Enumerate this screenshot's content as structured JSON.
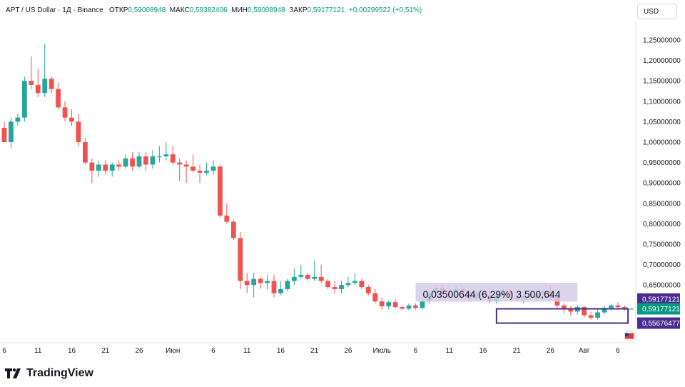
{
  "header": {
    "symbol": "APT / US Dollar · 1Д · Binance",
    "open_label": "ОТКР",
    "open_value": "0,59008948",
    "high_label": "МАКС",
    "high_value": "0,59382406",
    "low_label": "МИН",
    "low_value": "0,59008948",
    "close_label": "ЗАКР",
    "close_value": "0,59177121",
    "change": "+0,00299522 (+0,51%)"
  },
  "currency_button": "USD",
  "brand": "TradingView",
  "colors": {
    "up": "#26a69a",
    "down": "#ef5350",
    "purple": "#4a2c91",
    "green_label": "#089981",
    "measure_fill": "#d6cdea"
  },
  "measure_label": "0,03500644 (6,29%) 3 500,644",
  "price_labels": {
    "last_price": "0,59177121",
    "box_top": "0,59177121",
    "box_bottom": "0,55676477"
  },
  "chart_data": {
    "type": "candlestick",
    "ylim": [
      0.59,
      1.28
    ],
    "y_ticks": [
      "1,25000000",
      "1,20000000",
      "1,15000000",
      "1,10000000",
      "1,05000000",
      "1,00000000",
      "0,95000000",
      "0,90000000",
      "0,85000000",
      "0,80000000",
      "0,75000000",
      "0,70000000",
      "0,65000000"
    ],
    "x_ticks": [
      "6",
      "11",
      "16",
      "21",
      "26",
      "Июн",
      "6",
      "11",
      "16",
      "21",
      "26",
      "Июль",
      "6",
      "11",
      "16",
      "21",
      "26",
      "Авг",
      "6"
    ],
    "candles": [
      [
        1.035,
        1.05,
        1.0,
        1.0
      ],
      [
        1.0,
        1.06,
        0.985,
        1.05
      ],
      [
        1.05,
        1.07,
        1.04,
        1.06
      ],
      [
        1.06,
        1.16,
        1.05,
        1.15
      ],
      [
        1.15,
        1.21,
        1.13,
        1.14
      ],
      [
        1.14,
        1.18,
        1.11,
        1.12
      ],
      [
        1.12,
        1.24,
        1.11,
        1.155
      ],
      [
        1.155,
        1.16,
        1.12,
        1.13
      ],
      [
        1.13,
        1.145,
        1.08,
        1.085
      ],
      [
        1.085,
        1.1,
        1.05,
        1.06
      ],
      [
        1.06,
        1.08,
        1.04,
        1.05
      ],
      [
        1.05,
        1.07,
        0.99,
        1.0
      ],
      [
        1.0,
        1.01,
        0.945,
        0.95
      ],
      [
        0.95,
        0.96,
        0.9,
        0.93
      ],
      [
        0.93,
        0.955,
        0.915,
        0.945
      ],
      [
        0.945,
        0.955,
        0.92,
        0.93
      ],
      [
        0.93,
        0.95,
        0.915,
        0.945
      ],
      [
        0.945,
        0.955,
        0.93,
        0.94
      ],
      [
        0.94,
        0.97,
        0.935,
        0.96
      ],
      [
        0.96,
        0.975,
        0.93,
        0.94
      ],
      [
        0.94,
        0.975,
        0.935,
        0.965
      ],
      [
        0.965,
        0.975,
        0.93,
        0.945
      ],
      [
        0.945,
        0.98,
        0.935,
        0.965
      ],
      [
        0.965,
        0.99,
        0.95,
        0.965
      ],
      [
        0.965,
        1.0,
        0.955,
        0.97
      ],
      [
        0.97,
        0.99,
        0.945,
        0.95
      ],
      [
        0.95,
        0.96,
        0.905,
        0.945
      ],
      [
        0.945,
        0.955,
        0.9,
        0.94
      ],
      [
        0.94,
        0.97,
        0.925,
        0.93
      ],
      [
        0.93,
        0.945,
        0.9,
        0.925
      ],
      [
        0.925,
        0.95,
        0.92,
        0.93
      ],
      [
        0.93,
        0.955,
        0.92,
        0.94
      ],
      [
        0.94,
        0.945,
        0.815,
        0.82
      ],
      [
        0.82,
        0.85,
        0.8,
        0.805
      ],
      [
        0.805,
        0.81,
        0.76,
        0.765
      ],
      [
        0.765,
        0.78,
        0.64,
        0.66
      ],
      [
        0.66,
        0.68,
        0.63,
        0.65
      ],
      [
        0.65,
        0.68,
        0.62,
        0.665
      ],
      [
        0.665,
        0.67,
        0.64,
        0.655
      ],
      [
        0.655,
        0.675,
        0.64,
        0.66
      ],
      [
        0.66,
        0.675,
        0.62,
        0.63
      ],
      [
        0.63,
        0.66,
        0.625,
        0.64
      ],
      [
        0.64,
        0.665,
        0.635,
        0.66
      ],
      [
        0.66,
        0.69,
        0.65,
        0.67
      ],
      [
        0.67,
        0.7,
        0.665,
        0.675
      ],
      [
        0.675,
        0.68,
        0.66,
        0.665
      ],
      [
        0.665,
        0.71,
        0.66,
        0.67
      ],
      [
        0.67,
        0.7,
        0.655,
        0.66
      ],
      [
        0.66,
        0.665,
        0.64,
        0.645
      ],
      [
        0.645,
        0.66,
        0.63,
        0.64
      ],
      [
        0.64,
        0.66,
        0.63,
        0.65
      ],
      [
        0.65,
        0.67,
        0.645,
        0.655
      ],
      [
        0.655,
        0.68,
        0.65,
        0.66
      ],
      [
        0.66,
        0.665,
        0.64,
        0.645
      ],
      [
        0.645,
        0.65,
        0.625,
        0.63
      ],
      [
        0.63,
        0.64,
        0.605,
        0.61
      ],
      [
        0.61,
        0.62,
        0.59,
        0.598
      ],
      [
        0.598,
        0.612,
        0.59,
        0.608
      ],
      [
        0.608,
        0.615,
        0.593,
        0.596
      ],
      [
        0.596,
        0.6,
        0.588,
        0.592
      ],
      [
        0.592,
        0.605,
        0.588,
        0.6
      ],
      [
        0.6,
        0.605,
        0.59,
        0.594
      ],
      [
        0.594,
        0.615,
        0.59,
        0.61
      ],
      [
        0.61,
        0.635,
        0.605,
        0.63
      ],
      [
        0.63,
        0.645,
        0.625,
        0.643
      ],
      [
        0.643,
        0.65,
        0.63,
        0.637
      ],
      [
        0.637,
        0.645,
        0.625,
        0.635
      ],
      [
        0.635,
        0.65,
        0.628,
        0.64
      ],
      [
        0.64,
        0.648,
        0.628,
        0.633
      ],
      [
        0.633,
        0.64,
        0.612,
        0.618
      ],
      [
        0.618,
        0.635,
        0.612,
        0.63
      ],
      [
        0.63,
        0.64,
        0.62,
        0.625
      ],
      [
        0.625,
        0.632,
        0.605,
        0.61
      ],
      [
        0.61,
        0.628,
        0.605,
        0.625
      ],
      [
        0.625,
        0.64,
        0.62,
        0.635
      ],
      [
        0.635,
        0.64,
        0.615,
        0.62
      ],
      [
        0.62,
        0.63,
        0.61,
        0.615
      ],
      [
        0.615,
        0.628,
        0.605,
        0.622
      ],
      [
        0.622,
        0.632,
        0.615,
        0.618
      ],
      [
        0.618,
        0.635,
        0.61,
        0.63
      ],
      [
        0.63,
        0.64,
        0.625,
        0.635
      ],
      [
        0.635,
        0.65,
        0.615,
        0.62
      ],
      [
        0.62,
        0.622,
        0.595,
        0.6
      ],
      [
        0.6,
        0.605,
        0.58,
        0.59
      ],
      [
        0.59,
        0.598,
        0.575,
        0.585
      ],
      [
        0.585,
        0.6,
        0.578,
        0.596
      ],
      [
        0.596,
        0.6,
        0.57,
        0.576
      ],
      [
        0.576,
        0.585,
        0.565,
        0.57
      ],
      [
        0.57,
        0.59,
        0.565,
        0.583
      ],
      [
        0.583,
        0.6,
        0.578,
        0.594
      ],
      [
        0.594,
        0.605,
        0.588,
        0.6
      ],
      [
        0.6,
        0.608,
        0.592,
        0.596
      ],
      [
        0.596,
        0.6,
        0.588,
        0.59
      ],
      [
        0.59,
        0.5938,
        0.5901,
        0.5918
      ]
    ]
  }
}
